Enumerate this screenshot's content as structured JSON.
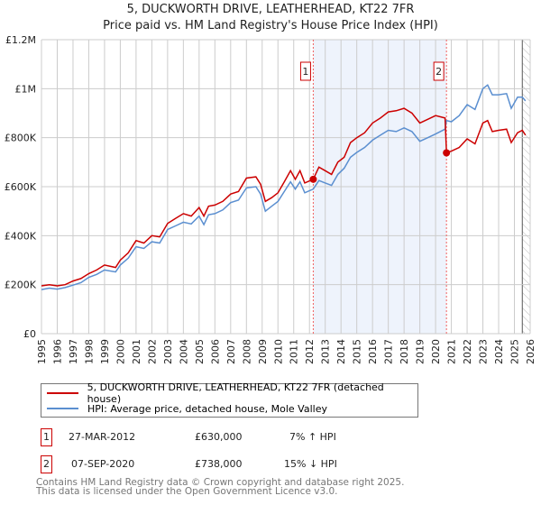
{
  "chart_data": {
    "type": "line",
    "title": "5, DUCKWORTH DRIVE, LEATHERHEAD, KT22 7FR",
    "subtitle": "Price paid vs. HM Land Registry's House Price Index (HPI)",
    "xlim": [
      1995,
      2026
    ],
    "ylim": [
      0,
      1200000
    ],
    "y_ticks": [
      {
        "v": 0,
        "label": "£0"
      },
      {
        "v": 200000,
        "label": "£200K"
      },
      {
        "v": 400000,
        "label": "£400K"
      },
      {
        "v": 600000,
        "label": "£600K"
      },
      {
        "v": 800000,
        "label": "£800K"
      },
      {
        "v": 1000000,
        "label": "£1M"
      },
      {
        "v": 1200000,
        "label": "£1.2M"
      }
    ],
    "x_ticks": [
      "1995",
      "1996",
      "1997",
      "1998",
      "1999",
      "2000",
      "2001",
      "2002",
      "2003",
      "2004",
      "2005",
      "2006",
      "2007",
      "2008",
      "2009",
      "2010",
      "2011",
      "2012",
      "2013",
      "2014",
      "2015",
      "2016",
      "2017",
      "2018",
      "2019",
      "2020",
      "2021",
      "2022",
      "2023",
      "2024",
      "2025",
      "2026"
    ],
    "grid": true,
    "shaded_range": [
      2012.24,
      2020.69
    ],
    "forecast_hatch_from": 2025.5,
    "colors": {
      "property": "#cc0000",
      "hpi": "#5b8fd0",
      "shade": "#eef3fc",
      "marker_border": "#cc0000"
    },
    "series": [
      {
        "name": "5, DUCKWORTH DRIVE, LEATHERHEAD, KT22 7FR (detached house)",
        "color": "#cc0000",
        "points": [
          [
            1995,
            195000
          ],
          [
            1995.5,
            200000
          ],
          [
            1996,
            195000
          ],
          [
            1996.5,
            200000
          ],
          [
            1997,
            215000
          ],
          [
            1997.5,
            225000
          ],
          [
            1998,
            245000
          ],
          [
            1998.5,
            260000
          ],
          [
            1999,
            280000
          ],
          [
            1999.7,
            270000
          ],
          [
            2000,
            300000
          ],
          [
            2000.5,
            330000
          ],
          [
            2001,
            380000
          ],
          [
            2001.5,
            370000
          ],
          [
            2002,
            400000
          ],
          [
            2002.5,
            395000
          ],
          [
            2003,
            450000
          ],
          [
            2003.5,
            470000
          ],
          [
            2004,
            490000
          ],
          [
            2004.5,
            480000
          ],
          [
            2005,
            515000
          ],
          [
            2005.3,
            480000
          ],
          [
            2005.6,
            520000
          ],
          [
            2006,
            525000
          ],
          [
            2006.5,
            540000
          ],
          [
            2007,
            570000
          ],
          [
            2007.5,
            580000
          ],
          [
            2008,
            635000
          ],
          [
            2008.6,
            640000
          ],
          [
            2008.9,
            610000
          ],
          [
            2009.2,
            540000
          ],
          [
            2009.6,
            555000
          ],
          [
            2010,
            575000
          ],
          [
            2010.4,
            620000
          ],
          [
            2010.8,
            665000
          ],
          [
            2011.1,
            630000
          ],
          [
            2011.4,
            665000
          ],
          [
            2011.7,
            615000
          ],
          [
            2012.24,
            630000
          ],
          [
            2012.6,
            680000
          ],
          [
            2013,
            665000
          ],
          [
            2013.4,
            650000
          ],
          [
            2013.8,
            700000
          ],
          [
            2014.2,
            720000
          ],
          [
            2014.6,
            780000
          ],
          [
            2015,
            800000
          ],
          [
            2015.5,
            820000
          ],
          [
            2016,
            860000
          ],
          [
            2016.5,
            880000
          ],
          [
            2017,
            905000
          ],
          [
            2017.5,
            910000
          ],
          [
            2018,
            920000
          ],
          [
            2018.5,
            900000
          ],
          [
            2019,
            860000
          ],
          [
            2019.5,
            875000
          ],
          [
            2020,
            890000
          ],
          [
            2020.6,
            880000
          ],
          [
            2020.69,
            738000
          ],
          [
            2021,
            745000
          ],
          [
            2021.5,
            760000
          ],
          [
            2022,
            795000
          ],
          [
            2022.5,
            775000
          ],
          [
            2023,
            860000
          ],
          [
            2023.3,
            870000
          ],
          [
            2023.6,
            825000
          ],
          [
            2024,
            830000
          ],
          [
            2024.5,
            835000
          ],
          [
            2024.8,
            780000
          ],
          [
            2025.2,
            820000
          ],
          [
            2025.5,
            830000
          ],
          [
            2025.7,
            810000
          ]
        ]
      },
      {
        "name": "HPI: Average price, detached house, Mole Valley",
        "color": "#5b8fd0",
        "points": [
          [
            1995,
            180000
          ],
          [
            1995.5,
            186000
          ],
          [
            1996,
            182000
          ],
          [
            1996.5,
            188000
          ],
          [
            1997,
            198000
          ],
          [
            1997.5,
            208000
          ],
          [
            1998,
            230000
          ],
          [
            1998.5,
            242000
          ],
          [
            1999,
            260000
          ],
          [
            1999.7,
            252000
          ],
          [
            2000,
            280000
          ],
          [
            2000.5,
            308000
          ],
          [
            2001,
            355000
          ],
          [
            2001.5,
            348000
          ],
          [
            2002,
            375000
          ],
          [
            2002.5,
            370000
          ],
          [
            2003,
            425000
          ],
          [
            2003.5,
            440000
          ],
          [
            2004,
            455000
          ],
          [
            2004.5,
            448000
          ],
          [
            2005,
            480000
          ],
          [
            2005.3,
            445000
          ],
          [
            2005.6,
            485000
          ],
          [
            2006,
            490000
          ],
          [
            2006.5,
            505000
          ],
          [
            2007,
            535000
          ],
          [
            2007.5,
            545000
          ],
          [
            2008,
            595000
          ],
          [
            2008.6,
            600000
          ],
          [
            2008.9,
            570000
          ],
          [
            2009.2,
            500000
          ],
          [
            2009.6,
            520000
          ],
          [
            2010,
            540000
          ],
          [
            2010.4,
            580000
          ],
          [
            2010.8,
            620000
          ],
          [
            2011.1,
            590000
          ],
          [
            2011.4,
            620000
          ],
          [
            2011.7,
            575000
          ],
          [
            2012.24,
            590000
          ],
          [
            2012.6,
            625000
          ],
          [
            2013,
            615000
          ],
          [
            2013.4,
            605000
          ],
          [
            2013.8,
            650000
          ],
          [
            2014.2,
            675000
          ],
          [
            2014.6,
            720000
          ],
          [
            2015,
            740000
          ],
          [
            2015.5,
            760000
          ],
          [
            2016,
            790000
          ],
          [
            2016.5,
            810000
          ],
          [
            2017,
            830000
          ],
          [
            2017.5,
            825000
          ],
          [
            2018,
            840000
          ],
          [
            2018.5,
            825000
          ],
          [
            2019,
            785000
          ],
          [
            2019.5,
            800000
          ],
          [
            2020,
            815000
          ],
          [
            2020.6,
            835000
          ],
          [
            2020.69,
            870000
          ],
          [
            2021,
            865000
          ],
          [
            2021.5,
            890000
          ],
          [
            2022,
            935000
          ],
          [
            2022.5,
            915000
          ],
          [
            2023,
            1000000
          ],
          [
            2023.3,
            1015000
          ],
          [
            2023.6,
            975000
          ],
          [
            2024,
            975000
          ],
          [
            2024.5,
            980000
          ],
          [
            2024.8,
            920000
          ],
          [
            2025.2,
            965000
          ],
          [
            2025.5,
            965000
          ],
          [
            2025.7,
            950000
          ]
        ]
      }
    ],
    "sales": [
      {
        "id": "1",
        "x": 2012.24,
        "value": 630000
      },
      {
        "id": "2",
        "x": 2020.69,
        "value": 738000
      }
    ]
  },
  "legend": {
    "property": "5, DUCKWORTH DRIVE, LEATHERHEAD, KT22 7FR (detached house)",
    "hpi": "HPI: Average price, detached house, Mole Valley"
  },
  "transactions": [
    {
      "id": "1",
      "date": "27-MAR-2012",
      "price": "£630,000",
      "hpi": "7% ↑ HPI"
    },
    {
      "id": "2",
      "date": "07-SEP-2020",
      "price": "£738,000",
      "hpi": "15% ↓ HPI"
    }
  ],
  "footer": {
    "line1": "Contains HM Land Registry data © Crown copyright and database right 2025.",
    "line2": "This data is licensed under the Open Government Licence v3.0."
  }
}
